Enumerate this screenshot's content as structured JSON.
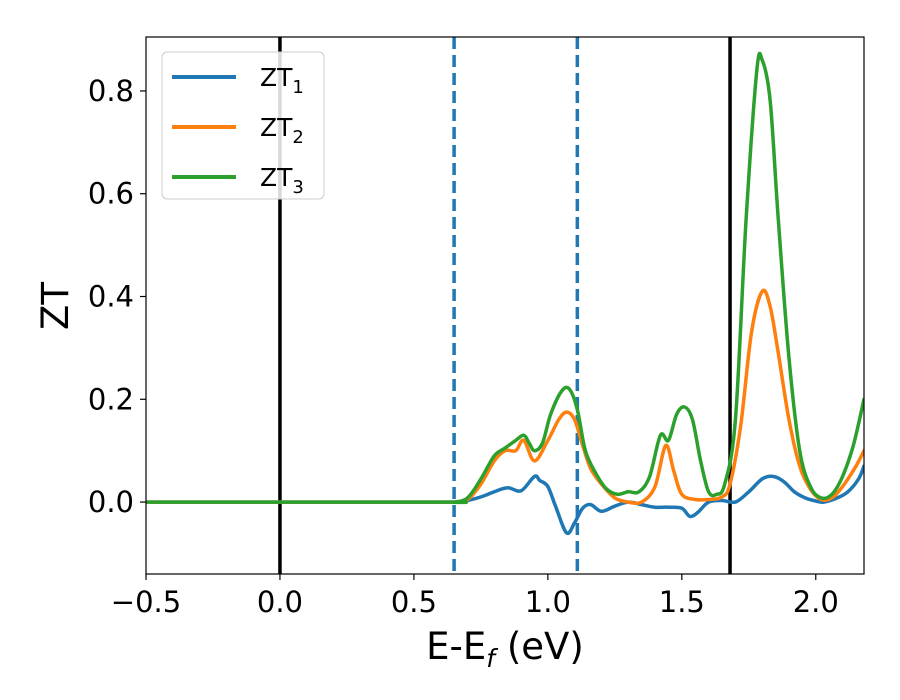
{
  "chart_data": {
    "type": "line",
    "xlabel": "E-E",
    "xlabel_sub": "f",
    "xlabel_unit": " (eV)",
    "ylabel": "ZT",
    "xlim": [
      -0.5,
      2.18
    ],
    "ylim": [
      -0.14,
      0.905
    ],
    "x_ticks": [
      -0.5,
      0.0,
      0.5,
      1.0,
      1.5,
      2.0
    ],
    "x_tick_labels": [
      "−0.5",
      "0.0",
      "0.5",
      "1.0",
      "1.5",
      "2.0"
    ],
    "y_ticks": [
      0.0,
      0.2,
      0.4,
      0.6,
      0.8
    ],
    "y_tick_labels": [
      "0.0",
      "0.2",
      "0.4",
      "0.6",
      "0.8"
    ],
    "grid": false,
    "legend_position": "top-left",
    "vertical_lines": [
      {
        "x": 0.0,
        "style": "solid",
        "color": "#000000"
      },
      {
        "x": 0.65,
        "style": "dashed",
        "color": "#1f77b4"
      },
      {
        "x": 1.11,
        "style": "dashed",
        "color": "#1f77b4"
      },
      {
        "x": 1.68,
        "style": "solid",
        "color": "#000000"
      }
    ],
    "series": [
      {
        "name": "ZT",
        "sub": "1",
        "color": "#1f77b4",
        "points": [
          [
            -0.5,
            0
          ],
          [
            0.55,
            0
          ],
          [
            0.65,
            0
          ],
          [
            0.7,
            0.003
          ],
          [
            0.75,
            0.01
          ],
          [
            0.8,
            0.02
          ],
          [
            0.85,
            0.028
          ],
          [
            0.9,
            0.022
          ],
          [
            0.95,
            0.05
          ],
          [
            0.97,
            0.042
          ],
          [
            1.0,
            0.03
          ],
          [
            1.03,
            -0.01
          ],
          [
            1.07,
            -0.06
          ],
          [
            1.1,
            -0.04
          ],
          [
            1.13,
            -0.012
          ],
          [
            1.16,
            -0.005
          ],
          [
            1.2,
            -0.018
          ],
          [
            1.25,
            -0.008
          ],
          [
            1.3,
            0
          ],
          [
            1.35,
            -0.005
          ],
          [
            1.4,
            -0.01
          ],
          [
            1.45,
            -0.01
          ],
          [
            1.5,
            -0.012
          ],
          [
            1.53,
            -0.028
          ],
          [
            1.56,
            -0.02
          ],
          [
            1.6,
            0
          ],
          [
            1.65,
            0.003
          ],
          [
            1.7,
            0
          ],
          [
            1.75,
            0.02
          ],
          [
            1.8,
            0.045
          ],
          [
            1.84,
            0.05
          ],
          [
            1.88,
            0.04
          ],
          [
            1.92,
            0.02
          ],
          [
            1.96,
            0.008
          ],
          [
            2.0,
            0.002
          ],
          [
            2.03,
            0
          ],
          [
            2.08,
            0.008
          ],
          [
            2.12,
            0.02
          ],
          [
            2.16,
            0.045
          ],
          [
            2.18,
            0.07
          ]
        ]
      },
      {
        "name": "ZT",
        "sub": "2",
        "color": "#ff7f0e",
        "points": [
          [
            -0.5,
            0
          ],
          [
            0.6,
            0
          ],
          [
            0.65,
            0
          ],
          [
            0.7,
            0.005
          ],
          [
            0.75,
            0.035
          ],
          [
            0.8,
            0.08
          ],
          [
            0.84,
            0.1
          ],
          [
            0.88,
            0.1
          ],
          [
            0.91,
            0.12
          ],
          [
            0.95,
            0.08
          ],
          [
            1.0,
            0.12
          ],
          [
            1.04,
            0.16
          ],
          [
            1.07,
            0.175
          ],
          [
            1.1,
            0.16
          ],
          [
            1.13,
            0.11
          ],
          [
            1.16,
            0.065
          ],
          [
            1.2,
            0.035
          ],
          [
            1.25,
            0.008
          ],
          [
            1.3,
            0
          ],
          [
            1.35,
            0
          ],
          [
            1.4,
            0.03
          ],
          [
            1.44,
            0.11
          ],
          [
            1.47,
            0.06
          ],
          [
            1.5,
            0.015
          ],
          [
            1.55,
            0.005
          ],
          [
            1.6,
            0.005
          ],
          [
            1.65,
            0.01
          ],
          [
            1.68,
            0.035
          ],
          [
            1.72,
            0.15
          ],
          [
            1.76,
            0.33
          ],
          [
            1.8,
            0.41
          ],
          [
            1.83,
            0.38
          ],
          [
            1.86,
            0.29
          ],
          [
            1.9,
            0.16
          ],
          [
            1.94,
            0.07
          ],
          [
            1.98,
            0.025
          ],
          [
            2.02,
            0.005
          ],
          [
            2.06,
            0.008
          ],
          [
            2.1,
            0.03
          ],
          [
            2.15,
            0.07
          ],
          [
            2.18,
            0.1
          ]
        ]
      },
      {
        "name": "ZT",
        "sub": "3",
        "color": "#2ca02c",
        "points": [
          [
            -0.5,
            0
          ],
          [
            0.6,
            0
          ],
          [
            0.65,
            0
          ],
          [
            0.7,
            0.008
          ],
          [
            0.75,
            0.045
          ],
          [
            0.8,
            0.09
          ],
          [
            0.84,
            0.105
          ],
          [
            0.88,
            0.12
          ],
          [
            0.91,
            0.13
          ],
          [
            0.93,
            0.115
          ],
          [
            0.95,
            0.1
          ],
          [
            0.98,
            0.115
          ],
          [
            1.01,
            0.17
          ],
          [
            1.05,
            0.215
          ],
          [
            1.08,
            0.22
          ],
          [
            1.11,
            0.18
          ],
          [
            1.14,
            0.1
          ],
          [
            1.18,
            0.055
          ],
          [
            1.22,
            0.025
          ],
          [
            1.26,
            0.015
          ],
          [
            1.3,
            0.02
          ],
          [
            1.34,
            0.02
          ],
          [
            1.38,
            0.05
          ],
          [
            1.42,
            0.13
          ],
          [
            1.45,
            0.12
          ],
          [
            1.48,
            0.17
          ],
          [
            1.51,
            0.185
          ],
          [
            1.54,
            0.16
          ],
          [
            1.57,
            0.08
          ],
          [
            1.6,
            0.02
          ],
          [
            1.63,
            0.015
          ],
          [
            1.66,
            0.035
          ],
          [
            1.7,
            0.16
          ],
          [
            1.74,
            0.55
          ],
          [
            1.78,
            0.84
          ],
          [
            1.8,
            0.86
          ],
          [
            1.83,
            0.78
          ],
          [
            1.86,
            0.55
          ],
          [
            1.9,
            0.28
          ],
          [
            1.94,
            0.1
          ],
          [
            1.98,
            0.03
          ],
          [
            2.02,
            0.008
          ],
          [
            2.06,
            0.015
          ],
          [
            2.1,
            0.05
          ],
          [
            2.14,
            0.11
          ],
          [
            2.18,
            0.2
          ]
        ]
      }
    ]
  }
}
